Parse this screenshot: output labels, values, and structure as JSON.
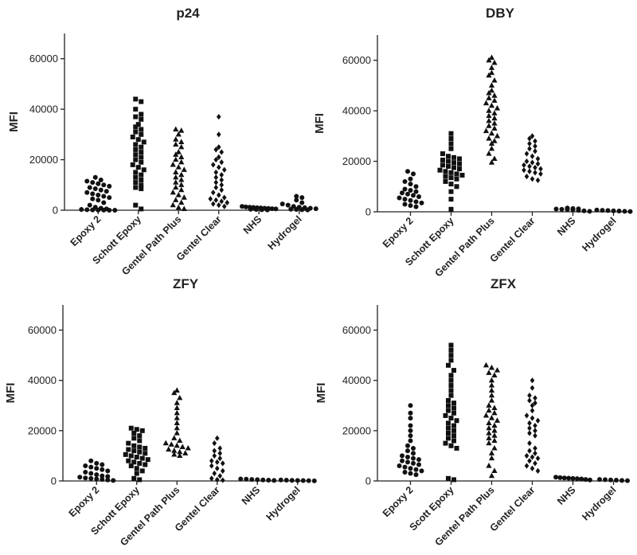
{
  "chart_data": [
    {
      "type": "scatter",
      "title": "p24",
      "ylabel": "MFI",
      "ylim": [
        0,
        70000
      ],
      "yticks": [
        0,
        20000,
        40000,
        60000
      ],
      "categories": [
        "Epoxy 2",
        "Schott Epoxy",
        "Gentel Path Plus",
        "Gentel Clear",
        "NHS",
        "Hydrogel"
      ],
      "markers": [
        "circle",
        "square",
        "triangle",
        "diamond",
        "circle",
        "circle"
      ],
      "groups": [
        [
          13000,
          12000,
          11500,
          11000,
          10500,
          10000,
          9500,
          9000,
          8500,
          8000,
          7500,
          7000,
          6500,
          6000,
          5500,
          5000,
          4500,
          4000,
          3000,
          2000,
          1200,
          800,
          500,
          300,
          200,
          100,
          50,
          20,
          10,
          5
        ],
        [
          44000,
          43000,
          40000,
          38000,
          37000,
          36000,
          34000,
          33000,
          32000,
          31000,
          30000,
          29000,
          28000,
          27000,
          26000,
          25000,
          24000,
          23000,
          22000,
          21000,
          20000,
          19000,
          18000,
          17000,
          16000,
          15000,
          14000,
          13000,
          12000,
          11000,
          10000,
          9000,
          8500,
          2000,
          500
        ],
        [
          32000,
          31500,
          30000,
          28000,
          27000,
          26000,
          25000,
          23000,
          22000,
          21000,
          20000,
          19000,
          18000,
          17000,
          16000,
          15000,
          14000,
          13000,
          12000,
          11000,
          10000,
          9000,
          8000,
          7000,
          6000,
          5000,
          4000,
          3000,
          2000,
          1000,
          500
        ],
        [
          37000,
          30000,
          25000,
          24000,
          23000,
          21000,
          20000,
          19000,
          18000,
          17000,
          16000,
          15000,
          14000,
          13000,
          12000,
          11000,
          10000,
          9000,
          8000,
          7000,
          6000,
          5000,
          4500,
          4000,
          3500,
          3000,
          2500,
          2000,
          1500
        ],
        [
          1500,
          1300,
          1200,
          1100,
          1000,
          900,
          800,
          700,
          600,
          500,
          400,
          300,
          200,
          100
        ],
        [
          5500,
          5000,
          4000,
          3000,
          2500,
          2000,
          1500,
          1200,
          1000,
          800,
          600,
          400,
          300,
          200,
          100
        ]
      ]
    },
    {
      "type": "scatter",
      "title": "DBY",
      "ylabel": "MFI",
      "ylim": [
        0,
        70000
      ],
      "yticks": [
        0,
        20000,
        40000,
        60000
      ],
      "categories": [
        "Epoxy 2",
        "Schott Epoxy",
        "Gentel Path Plus",
        "Gentel Clear",
        "NHS",
        "Hydrogel"
      ],
      "markers": [
        "circle",
        "square",
        "triangle",
        "diamond",
        "circle",
        "circle"
      ],
      "groups": [
        [
          16000,
          15000,
          13000,
          12000,
          11000,
          10000,
          9000,
          8500,
          8000,
          7500,
          7000,
          6500,
          6000,
          5500,
          5000,
          4500,
          4000,
          3500,
          3000,
          2500,
          2000
        ],
        [
          31000,
          29000,
          27000,
          25000,
          23000,
          22000,
          21500,
          21000,
          20500,
          20000,
          19500,
          19000,
          18500,
          18000,
          17500,
          17000,
          16500,
          16000,
          15500,
          15000,
          14500,
          14000,
          13500,
          13000,
          12000,
          11000,
          10000,
          8000,
          5000,
          1000
        ],
        [
          61000,
          60000,
          59000,
          57000,
          55000,
          54000,
          52000,
          50000,
          48000,
          47000,
          46000,
          45000,
          44000,
          43000,
          42000,
          41000,
          40000,
          39000,
          38000,
          37000,
          36000,
          35000,
          34000,
          33000,
          32000,
          31000,
          30000,
          29000,
          28000,
          27000,
          25000,
          23000,
          21000,
          19500
        ],
        [
          30000,
          29000,
          28000,
          27000,
          26000,
          25000,
          24000,
          23000,
          22000,
          21000,
          20000,
          19500,
          19000,
          18500,
          18000,
          17500,
          17000,
          16500,
          16000,
          15500,
          15000,
          14000,
          13000,
          12500
        ],
        [
          1500,
          1300,
          1200,
          1100,
          1000,
          900,
          800,
          600,
          400,
          200
        ],
        [
          700,
          600,
          500,
          400,
          300,
          200,
          100
        ]
      ]
    },
    {
      "type": "scatter",
      "title": "ZFY",
      "ylabel": "MFI",
      "ylim": [
        0,
        70000
      ],
      "yticks": [
        0,
        20000,
        40000,
        60000
      ],
      "categories": [
        "Epoxy 2",
        "Schott Epoxy",
        "Gentel Path Plus",
        "Gentel Clear",
        "NHS",
        "Hydrogel"
      ],
      "markers": [
        "circle",
        "square",
        "triangle",
        "diamond",
        "circle",
        "circle"
      ],
      "groups": [
        [
          8000,
          7000,
          6500,
          6000,
          5500,
          5000,
          4500,
          4000,
          3500,
          3000,
          2500,
          2000,
          1800,
          1500,
          1200,
          1000,
          800,
          600,
          400,
          200
        ],
        [
          21000,
          20500,
          20000,
          19000,
          18000,
          17000,
          16000,
          15000,
          14000,
          13500,
          13000,
          12500,
          12000,
          11500,
          11000,
          10500,
          10000,
          9500,
          9000,
          8500,
          8000,
          7500,
          7000,
          6500,
          6000,
          5000,
          4000,
          3000,
          1000,
          500
        ],
        [
          36000,
          35000,
          33000,
          31000,
          29000,
          27000,
          25000,
          23000,
          21000,
          19000,
          17000,
          16000,
          15000,
          14500,
          14000,
          13500,
          13000,
          12500,
          12000,
          11500,
          11000,
          10500,
          10000
        ],
        [
          17000,
          15000,
          13000,
          12000,
          11000,
          10000,
          9000,
          8000,
          7500,
          7000,
          6000,
          5000,
          4000,
          3000,
          2000,
          1000,
          500,
          300
        ],
        [
          800,
          700,
          600,
          500,
          400,
          300,
          200
        ],
        [
          400,
          300,
          250,
          200,
          150,
          100,
          50
        ]
      ]
    },
    {
      "type": "scatter",
      "title": "ZFX",
      "ylabel": "MFI",
      "ylim": [
        0,
        70000
      ],
      "yticks": [
        0,
        20000,
        40000,
        60000
      ],
      "categories": [
        "Epoxy 2",
        "Scott Epoxy",
        "Gentel Path Plus",
        "Gentel Clear",
        "NHS",
        "Hydrogel"
      ],
      "markers": [
        "circle",
        "square",
        "triangle",
        "diamond",
        "circle",
        "circle"
      ],
      "groups": [
        [
          30000,
          27000,
          25000,
          22000,
          20000,
          18000,
          16000,
          14000,
          13000,
          12000,
          11000,
          10000,
          9500,
          9000,
          8500,
          8000,
          7500,
          7000,
          6500,
          6000,
          5500,
          5000,
          4500,
          4000,
          3500,
          3000,
          2500
        ],
        [
          54000,
          52000,
          50000,
          48000,
          46000,
          44000,
          42000,
          40000,
          38000,
          36000,
          34000,
          32000,
          31000,
          30000,
          29000,
          28000,
          27000,
          26000,
          25000,
          24000,
          23000,
          22000,
          21000,
          20000,
          19000,
          18000,
          17000,
          16000,
          15000,
          14000,
          13000,
          1000,
          500
        ],
        [
          46000,
          45000,
          44000,
          43000,
          42000,
          40000,
          38000,
          36000,
          34000,
          32000,
          30000,
          29000,
          28000,
          27000,
          26000,
          25000,
          24000,
          23000,
          22000,
          21000,
          20000,
          19000,
          18000,
          17000,
          16000,
          15000,
          13000,
          11000,
          9000,
          6000,
          4000,
          2000
        ],
        [
          40000,
          37000,
          34000,
          33000,
          32000,
          31000,
          30000,
          28000,
          26000,
          25000,
          24000,
          23000,
          22000,
          21000,
          20000,
          19000,
          18000,
          15000,
          13000,
          12000,
          11000,
          10000,
          9500,
          9000,
          8000,
          7000,
          6000,
          5000,
          4000
        ],
        [
          1500,
          1300,
          1200,
          1100,
          1000,
          900,
          800,
          600,
          400
        ],
        [
          600,
          500,
          400,
          300,
          200,
          100
        ]
      ]
    }
  ]
}
